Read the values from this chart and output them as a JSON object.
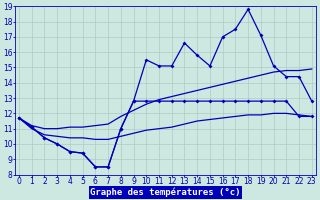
{
  "title": "Graphe des températures (°c)",
  "x_hours": [
    0,
    1,
    2,
    3,
    4,
    5,
    6,
    7,
    8,
    9,
    10,
    11,
    12,
    13,
    14,
    15,
    16,
    17,
    18,
    19,
    20,
    21,
    22,
    23
  ],
  "line_max": [
    11.7,
    11.1,
    10.4,
    10.0,
    9.5,
    9.4,
    8.5,
    8.5,
    11.0,
    12.8,
    15.5,
    15.1,
    15.1,
    16.6,
    15.8,
    15.1,
    17.0,
    17.5,
    18.8,
    17.1,
    15.1,
    14.4,
    14.4,
    12.8
  ],
  "line_avg_top": [
    11.7,
    11.2,
    11.0,
    11.0,
    11.1,
    11.1,
    11.2,
    11.3,
    11.8,
    12.2,
    12.6,
    12.9,
    13.1,
    13.3,
    13.5,
    13.7,
    13.9,
    14.1,
    14.3,
    14.5,
    14.7,
    14.8,
    14.8,
    14.9
  ],
  "line_avg_bot": [
    11.7,
    11.0,
    10.6,
    10.5,
    10.4,
    10.4,
    10.3,
    10.3,
    10.5,
    10.7,
    10.9,
    11.0,
    11.1,
    11.3,
    11.5,
    11.6,
    11.7,
    11.8,
    11.9,
    11.9,
    12.0,
    12.0,
    11.9,
    11.8
  ],
  "line_min": [
    11.7,
    11.1,
    10.4,
    10.0,
    9.5,
    9.4,
    8.5,
    8.5,
    11.0,
    12.8,
    12.8,
    12.8,
    12.8,
    12.8,
    12.8,
    12.8,
    12.8,
    12.8,
    12.8,
    12.8,
    12.8,
    12.8,
    11.8,
    11.8
  ],
  "bg_color": "#cce8e0",
  "line_color": "#0000bb",
  "grid_color": "#aaccc4",
  "ylim_min": 8,
  "ylim_max": 19,
  "xlim_min": 0,
  "xlim_max": 23,
  "ylabel_ticks": [
    8,
    9,
    10,
    11,
    12,
    13,
    14,
    15,
    16,
    17,
    18,
    19
  ],
  "xlabel_ticks": [
    0,
    1,
    2,
    3,
    4,
    5,
    6,
    7,
    8,
    9,
    10,
    11,
    12,
    13,
    14,
    15,
    16,
    17,
    18,
    19,
    20,
    21,
    22,
    23
  ],
  "marker": "D",
  "marker_size": 2.0,
  "tick_fontsize": 5.5,
  "xlabel_fontsize": 6.5,
  "lw": 0.9
}
